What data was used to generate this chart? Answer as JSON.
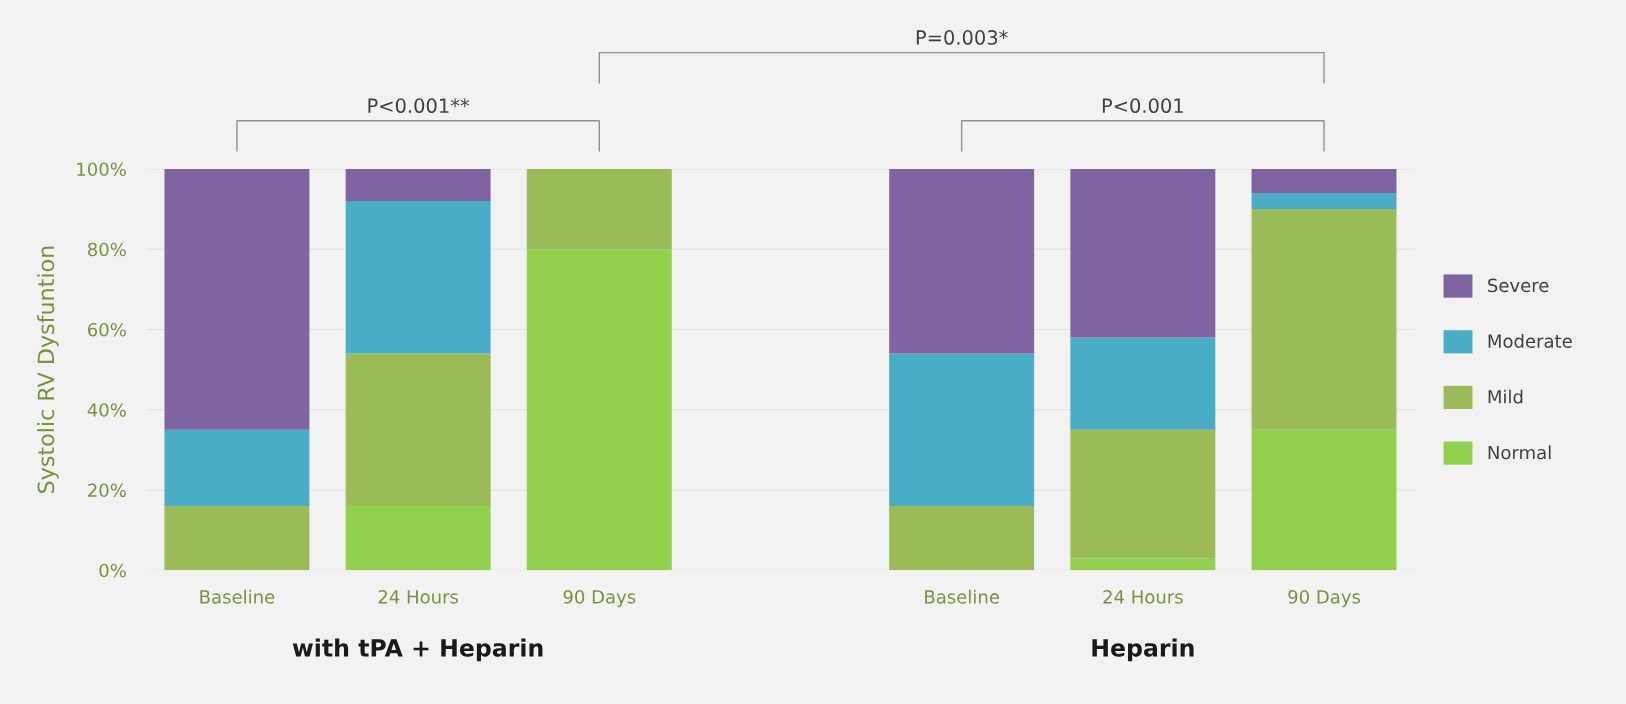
{
  "chart_data": {
    "type": "bar",
    "stacked": true,
    "categories": [
      "Baseline",
      "24 Hours",
      "90 Days",
      null,
      "Baseline",
      "24 Hours",
      "90 Days"
    ],
    "series": [
      {
        "name": "Normal",
        "color": "#92d050",
        "values": [
          0,
          16,
          80,
          null,
          0,
          3,
          35
        ]
      },
      {
        "name": "Mild",
        "color": "#9bbb59",
        "values": [
          16,
          38,
          20,
          null,
          16,
          32,
          55
        ]
      },
      {
        "name": "Moderate",
        "color": "#4bacc6",
        "values": [
          19,
          38,
          0,
          null,
          38,
          23,
          4
        ]
      },
      {
        "name": "Severe",
        "color": "#8064a2",
        "values": [
          65,
          8,
          0,
          null,
          46,
          42,
          6
        ]
      }
    ],
    "ylabel": "Systolic RV Dysfuntion",
    "ylim": [
      0,
      100
    ],
    "yticks": [
      {
        "value": 0,
        "label": "0%"
      },
      {
        "value": 20,
        "label": "20%"
      },
      {
        "value": 40,
        "label": "40%"
      },
      {
        "value": 60,
        "label": "60%"
      },
      {
        "value": 80,
        "label": "80%"
      },
      {
        "value": 100,
        "label": "100%"
      }
    ],
    "grid": "y",
    "legend": "right",
    "annotations": [
      "P<0.001**",
      "P<0.001",
      "P=0.003*",
      "with tPA + Heparin",
      "Heparin"
    ]
  }
}
